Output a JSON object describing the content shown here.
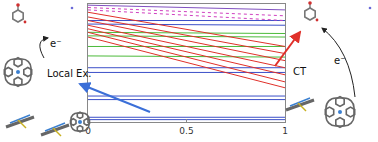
{
  "chart_data": {
    "type": "line",
    "x": [
      0,
      1
    ],
    "xlim": [
      0,
      1
    ],
    "xticks": [
      0,
      0.5,
      1
    ],
    "ylim": [
      0,
      10
    ],
    "tick_labels": "x",
    "grid": false,
    "series": [
      {
        "color": "#3b4fc8",
        "line_style": "solid",
        "values": [
          8.6,
          8.6
        ]
      },
      {
        "color": "#3b4fc8",
        "line_style": "solid",
        "values": [
          8.3,
          8.2
        ]
      },
      {
        "color": "#3b4fc8",
        "line_style": "solid",
        "values": [
          4.6,
          4.6
        ]
      },
      {
        "color": "#3b4fc8",
        "line_style": "solid",
        "values": [
          4.2,
          4.2
        ]
      },
      {
        "color": "#3b4fc8",
        "line_style": "solid",
        "values": [
          2.2,
          2.2
        ]
      },
      {
        "color": "#3b4fc8",
        "line_style": "solid",
        "values": [
          1.9,
          1.9
        ]
      },
      {
        "color": "#3b4fc8",
        "line_style": "solid",
        "values": [
          0.4,
          0.4
        ]
      },
      {
        "color": "#3b4fc8",
        "line_style": "solid",
        "values": [
          0.2,
          0.2
        ]
      },
      {
        "color": "#4cbb3a",
        "line_style": "solid",
        "values": [
          7.6,
          7.5
        ]
      },
      {
        "color": "#4cbb3a",
        "line_style": "solid",
        "values": [
          7.3,
          7.2
        ]
      },
      {
        "color": "#4cbb3a",
        "line_style": "solid",
        "values": [
          6.4,
          6.4
        ]
      },
      {
        "color": "#4cbb3a",
        "line_style": "solid",
        "values": [
          5.6,
          5.5
        ]
      },
      {
        "color": "#e0302a",
        "line_style": "solid",
        "values": [
          9.3,
          6.4
        ]
      },
      {
        "color": "#e0302a",
        "line_style": "solid",
        "values": [
          8.9,
          5.8
        ]
      },
      {
        "color": "#e0302a",
        "line_style": "solid",
        "values": [
          8.6,
          5.2
        ]
      },
      {
        "color": "#e0302a",
        "line_style": "solid",
        "values": [
          8.2,
          4.6
        ]
      },
      {
        "color": "#e0302a",
        "line_style": "solid",
        "values": [
          7.9,
          4.0
        ]
      },
      {
        "color": "#e0302a",
        "line_style": "solid",
        "values": [
          7.6,
          3.4
        ]
      },
      {
        "color": "#e0302a",
        "line_style": "solid",
        "values": [
          7.2,
          2.9
        ]
      },
      {
        "color": "#d040c0",
        "line_style": "dotted",
        "values": [
          9.7,
          9.0
        ]
      },
      {
        "color": "#d040c0",
        "line_style": "dotted",
        "values": [
          9.5,
          8.6
        ]
      },
      {
        "color": "#8050c0",
        "line_style": "solid",
        "values": [
          9.9,
          9.5
        ]
      }
    ],
    "annotations": {
      "left_label": "Local Ex.",
      "right_label": "CT",
      "left_electron": "e⁻",
      "right_electron": "e⁻"
    }
  }
}
